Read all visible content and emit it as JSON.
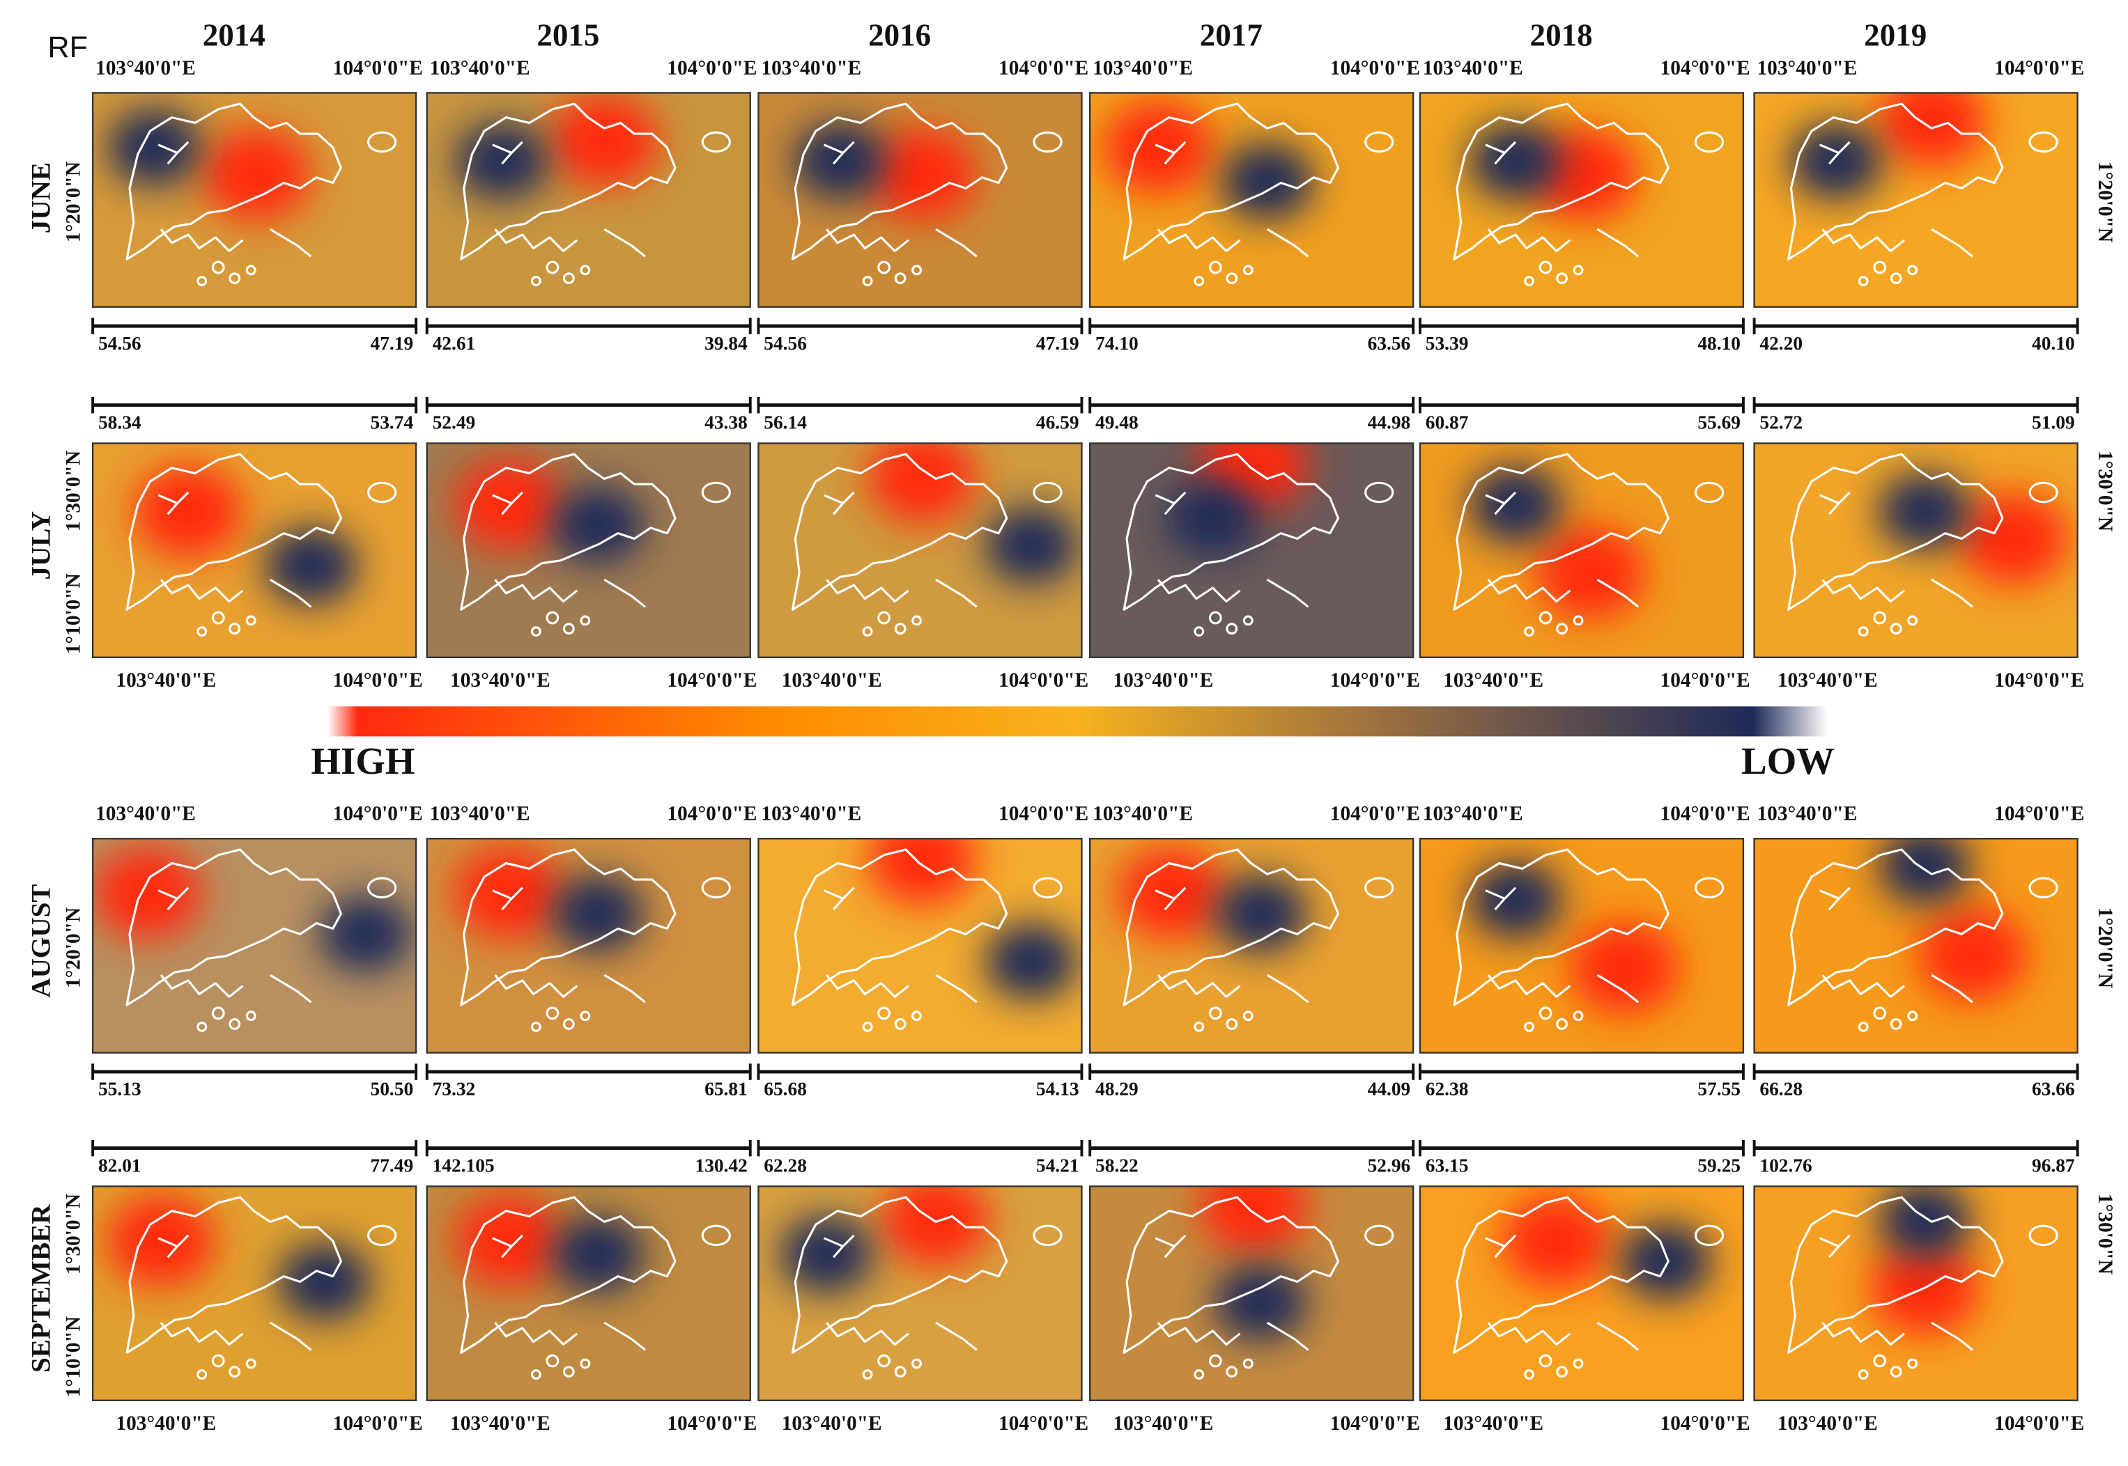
{
  "label": "RF",
  "years": [
    "2014",
    "2015",
    "2016",
    "2017",
    "2018",
    "2019"
  ],
  "months": [
    "JUNE",
    "JULY",
    "AUGUST",
    "SEPTEMBER"
  ],
  "coords": {
    "lon_left": "103°40'0\"E",
    "lon_right": "104°0'0\"E",
    "lat_upper": "1°30'0\"N",
    "lat_mid": "1°20'0\"N",
    "lat_lower": "1°10'0\"N"
  },
  "legend": {
    "high": "HIGH",
    "low": "LOW"
  },
  "panels": [
    [
      {
        "max": "54.56",
        "min": "47.19"
      },
      {
        "max": "42.61",
        "min": "39.84"
      },
      {
        "max": "54.56",
        "min": "47.19"
      },
      {
        "max": "74.10",
        "min": "63.56"
      },
      {
        "max": "53.39",
        "min": "48.10"
      },
      {
        "max": "42.20",
        "min": "40.10"
      }
    ],
    [
      {
        "max": "58.34",
        "min": "53.74"
      },
      {
        "max": "52.49",
        "min": "43.38"
      },
      {
        "max": "56.14",
        "min": "46.59"
      },
      {
        "max": "49.48",
        "min": "44.98"
      },
      {
        "max": "60.87",
        "min": "55.69"
      },
      {
        "max": "52.72",
        "min": "51.09"
      }
    ],
    [
      {
        "max": "55.13",
        "min": "50.50"
      },
      {
        "max": "73.32",
        "min": "65.81"
      },
      {
        "max": "65.68",
        "min": "54.13"
      },
      {
        "max": "48.29",
        "min": "44.09"
      },
      {
        "max": "62.38",
        "min": "57.55"
      },
      {
        "max": "66.28",
        "min": "63.66"
      }
    ],
    [
      {
        "max": "82.01",
        "min": "77.49"
      },
      {
        "max": "142.105",
        "min": "130.42"
      },
      {
        "max": "62.28",
        "min": "54.21"
      },
      {
        "max": "58.22",
        "min": "52.96"
      },
      {
        "max": "63.15",
        "min": "59.25"
      },
      {
        "max": "102.76",
        "min": "96.87"
      }
    ]
  ]
}
